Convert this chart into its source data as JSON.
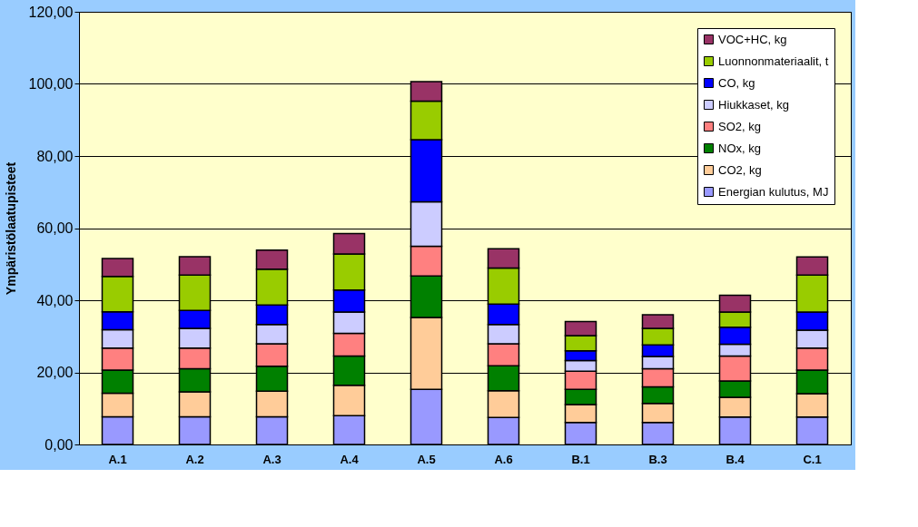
{
  "chart_data": {
    "type": "bar",
    "stacked": true,
    "ylabel": "Ympäristölaatupisteet",
    "categories": [
      "A.1",
      "A.2",
      "A.3",
      "A.4",
      "A.5",
      "A.6",
      "B.1",
      "B.3",
      "B.4",
      "C.1"
    ],
    "series": [
      {
        "name": "Energian kulutus, MJ",
        "color": "#9999ff",
        "values": [
          7.7,
          7.7,
          7.7,
          8.0,
          15.3,
          7.5,
          6.1,
          6.1,
          7.6,
          7.6
        ]
      },
      {
        "name": "CO2, kg",
        "color": "#ffcc99",
        "values": [
          6.5,
          6.9,
          7.1,
          8.4,
          19.9,
          7.4,
          5.0,
          5.3,
          5.5,
          6.5
        ]
      },
      {
        "name": "NOx, kg",
        "color": "#008000",
        "values": [
          6.4,
          6.4,
          6.9,
          8.1,
          11.5,
          6.9,
          4.2,
          4.6,
          4.5,
          6.5
        ]
      },
      {
        "name": "SO2, kg",
        "color": "#ff8080",
        "values": [
          6.1,
          5.7,
          6.2,
          6.3,
          8.3,
          6.1,
          5.0,
          5.0,
          6.9,
          6.1
        ]
      },
      {
        "name": "Hiukkaset, kg",
        "color": "#ccccff",
        "values": [
          5.1,
          5.5,
          5.4,
          5.9,
          12.3,
          5.4,
          3.0,
          3.4,
          3.3,
          5.0
        ]
      },
      {
        "name": "CO, kg",
        "color": "#0000ff",
        "values": [
          5.0,
          5.0,
          5.4,
          6.1,
          17.2,
          5.6,
          2.7,
          3.2,
          4.7,
          5.0
        ]
      },
      {
        "name": "Luonnonmateriaalit, t",
        "color": "#99cc00",
        "values": [
          9.8,
          9.8,
          9.9,
          10.0,
          10.7,
          10.0,
          4.2,
          4.6,
          4.2,
          10.3
        ]
      },
      {
        "name": "VOC+HC, kg",
        "color": "#993366",
        "values": [
          5.0,
          5.1,
          5.3,
          5.7,
          5.4,
          5.4,
          3.9,
          3.8,
          4.7,
          5.0
        ]
      }
    ],
    "ylim": [
      0,
      120
    ],
    "yticks": [
      {
        "value": 0,
        "label": "0,00"
      },
      {
        "value": 20,
        "label": "20,00"
      },
      {
        "value": 40,
        "label": "40,00"
      },
      {
        "value": 60,
        "label": "60,00"
      },
      {
        "value": 80,
        "label": "80,00"
      },
      {
        "value": 100,
        "label": "100,00"
      },
      {
        "value": 120,
        "label": "120,00"
      }
    ],
    "grid": "y",
    "legend": "top right"
  }
}
